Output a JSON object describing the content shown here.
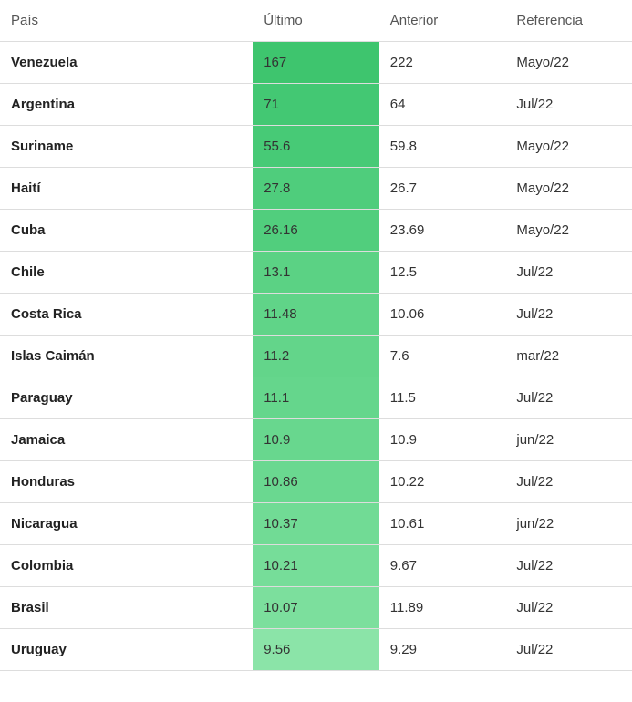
{
  "table": {
    "columns": [
      "País",
      "Último",
      "Anterior",
      "Referencia"
    ],
    "rows": [
      {
        "pais": "Venezuela",
        "ultimo": "167",
        "anterior": "222",
        "referencia": "Mayo/22",
        "bg": "#3ec56e"
      },
      {
        "pais": "Argentina",
        "ultimo": "71",
        "anterior": "64",
        "referencia": "Jul/22",
        "bg": "#43c873"
      },
      {
        "pais": "Suriname",
        "ultimo": "55.6",
        "anterior": "59.8",
        "referencia": "Mayo/22",
        "bg": "#47ca76"
      },
      {
        "pais": "Haití",
        "ultimo": "27.8",
        "anterior": "26.7",
        "referencia": "Mayo/22",
        "bg": "#4fcd7c"
      },
      {
        "pais": "Cuba",
        "ultimo": "26.16",
        "anterior": "23.69",
        "referencia": "Mayo/22",
        "bg": "#51ce7d"
      },
      {
        "pais": "Chile",
        "ultimo": "13.1",
        "anterior": "12.5",
        "referencia": "Jul/22",
        "bg": "#5bd284"
      },
      {
        "pais": "Costa Rica",
        "ultimo": "11.48",
        "anterior": "10.06",
        "referencia": "Jul/22",
        "bg": "#60d488"
      },
      {
        "pais": "Islas Caimán",
        "ultimo": "11.2",
        "anterior": "7.6",
        "referencia": "mar/22",
        "bg": "#63d58a"
      },
      {
        "pais": "Paraguay",
        "ultimo": "11.1",
        "anterior": "11.5",
        "referencia": "Jul/22",
        "bg": "#65d68c"
      },
      {
        "pais": "Jamaica",
        "ultimo": "10.9",
        "anterior": "10.9",
        "referencia": "jun/22",
        "bg": "#68d78e"
      },
      {
        "pais": "Honduras",
        "ultimo": "10.86",
        "anterior": "10.22",
        "referencia": "Jul/22",
        "bg": "#6ad890"
      },
      {
        "pais": "Nicaragua",
        "ultimo": "10.37",
        "anterior": "10.61",
        "referencia": "jun/22",
        "bg": "#71db95"
      },
      {
        "pais": "Colombia",
        "ultimo": "10.21",
        "anterior": "9.67",
        "referencia": "Jul/22",
        "bg": "#76dd99"
      },
      {
        "pais": "Brasil",
        "ultimo": "10.07",
        "anterior": "11.89",
        "referencia": "Jul/22",
        "bg": "#7cdf9d"
      },
      {
        "pais": "Uruguay",
        "ultimo": "9.56",
        "anterior": "9.29",
        "referencia": "Jul/22",
        "bg": "#8be4a8"
      }
    ]
  }
}
